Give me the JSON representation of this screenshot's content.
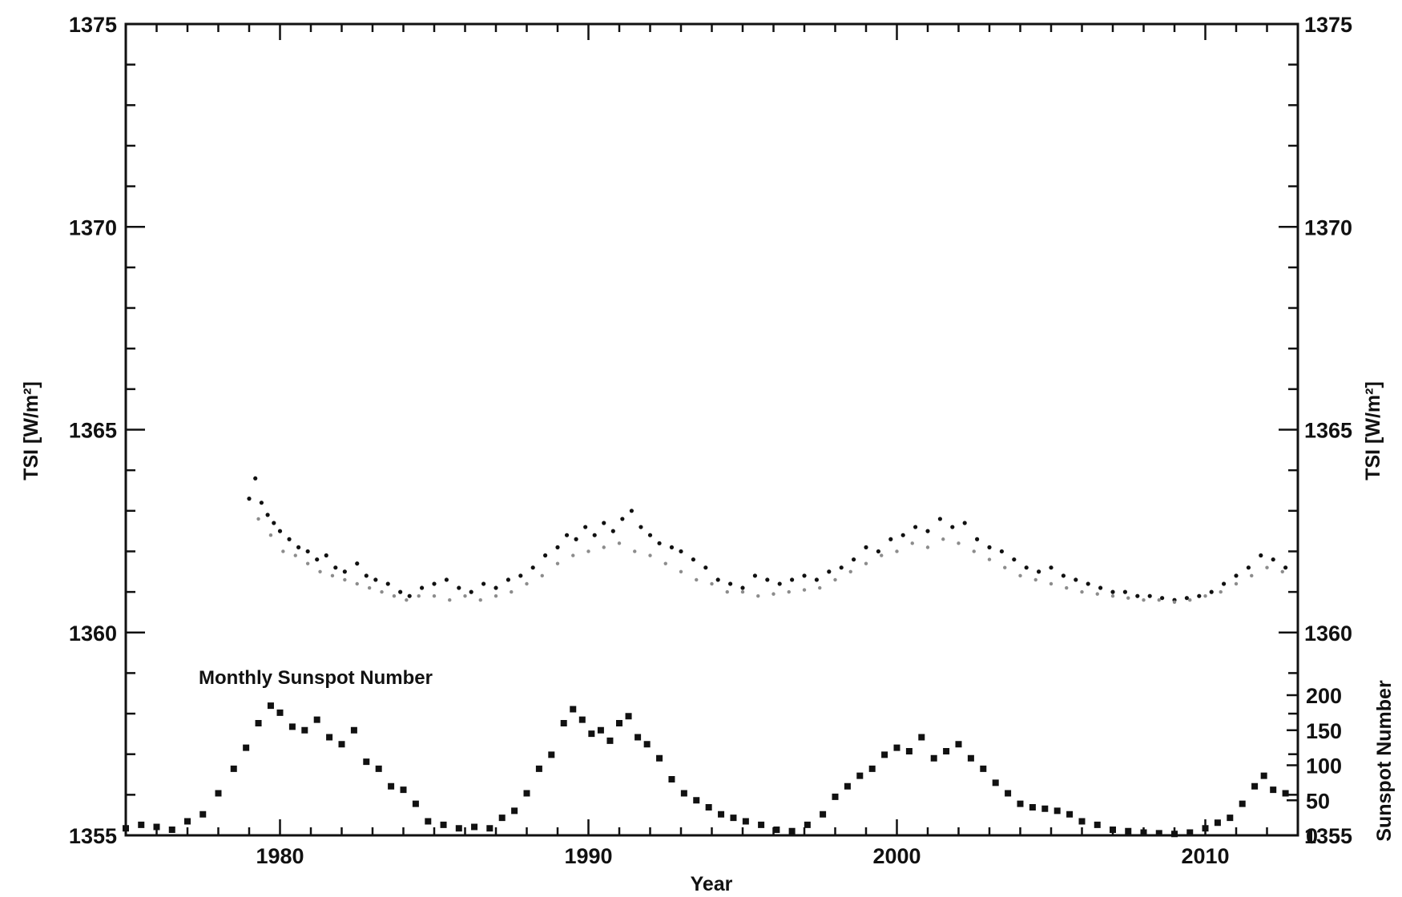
{
  "chart_data": {
    "type": "scatter",
    "title": "",
    "xlabel": "Year",
    "ylabel_left": "TSI [W/m²]",
    "ylabel_right": "TSI [W/m²]",
    "ylabel_sunspot": "Sunspot Number",
    "xlim": [
      1975,
      2013
    ],
    "ylim": [
      1355,
      1375
    ],
    "x_ticks": [
      1980,
      1990,
      2000,
      2010
    ],
    "x_tick_labels": [
      "1980",
      "1990",
      "2000",
      "2010"
    ],
    "y_ticks": [
      1355,
      1360,
      1365,
      1370,
      1375
    ],
    "y_tick_labels": [
      "1355",
      "1360",
      "1365",
      "1370",
      "1375"
    ],
    "sunspot_axis": {
      "label": "Sunspot Number",
      "ticks": [
        0,
        50,
        100,
        150,
        200
      ],
      "tick_labels": [
        "0",
        "50",
        "100",
        "150",
        "200"
      ],
      "range": [
        0,
        200
      ]
    },
    "annotation": "Monthly Sunspot Number",
    "grid": false,
    "series": [
      {
        "kind": "tsi_black",
        "color": "#111111",
        "points": [
          [
            1979.0,
            1363.3
          ],
          [
            1979.2,
            1363.8
          ],
          [
            1979.4,
            1363.2
          ],
          [
            1979.6,
            1362.9
          ],
          [
            1979.8,
            1362.7
          ],
          [
            1980.0,
            1362.5
          ],
          [
            1980.3,
            1362.3
          ],
          [
            1980.6,
            1362.1
          ],
          [
            1980.9,
            1362.0
          ],
          [
            1981.2,
            1361.8
          ],
          [
            1981.5,
            1361.9
          ],
          [
            1981.8,
            1361.6
          ],
          [
            1982.1,
            1361.5
          ],
          [
            1982.5,
            1361.7
          ],
          [
            1982.8,
            1361.4
          ],
          [
            1983.1,
            1361.3
          ],
          [
            1983.5,
            1361.2
          ],
          [
            1983.9,
            1361.0
          ],
          [
            1984.2,
            1360.9
          ],
          [
            1984.6,
            1361.1
          ],
          [
            1985.0,
            1361.2
          ],
          [
            1985.4,
            1361.3
          ],
          [
            1985.8,
            1361.1
          ],
          [
            1986.2,
            1361.0
          ],
          [
            1986.6,
            1361.2
          ],
          [
            1987.0,
            1361.1
          ],
          [
            1987.4,
            1361.3
          ],
          [
            1987.8,
            1361.4
          ],
          [
            1988.2,
            1361.6
          ],
          [
            1988.6,
            1361.9
          ],
          [
            1989.0,
            1362.1
          ],
          [
            1989.3,
            1362.4
          ],
          [
            1989.6,
            1362.3
          ],
          [
            1989.9,
            1362.6
          ],
          [
            1990.2,
            1362.4
          ],
          [
            1990.5,
            1362.7
          ],
          [
            1990.8,
            1362.5
          ],
          [
            1991.1,
            1362.8
          ],
          [
            1991.4,
            1363.0
          ],
          [
            1991.7,
            1362.6
          ],
          [
            1992.0,
            1362.4
          ],
          [
            1992.3,
            1362.2
          ],
          [
            1992.7,
            1362.1
          ],
          [
            1993.0,
            1362.0
          ],
          [
            1993.4,
            1361.8
          ],
          [
            1993.8,
            1361.6
          ],
          [
            1994.2,
            1361.3
          ],
          [
            1994.6,
            1361.2
          ],
          [
            1995.0,
            1361.1
          ],
          [
            1995.4,
            1361.4
          ],
          [
            1995.8,
            1361.3
          ],
          [
            1996.2,
            1361.2
          ],
          [
            1996.6,
            1361.3
          ],
          [
            1997.0,
            1361.4
          ],
          [
            1997.4,
            1361.3
          ],
          [
            1997.8,
            1361.5
          ],
          [
            1998.2,
            1361.6
          ],
          [
            1998.6,
            1361.8
          ],
          [
            1999.0,
            1362.1
          ],
          [
            1999.4,
            1362.0
          ],
          [
            1999.8,
            1362.3
          ],
          [
            2000.2,
            1362.4
          ],
          [
            2000.6,
            1362.6
          ],
          [
            2001.0,
            1362.5
          ],
          [
            2001.4,
            1362.8
          ],
          [
            2001.8,
            1362.6
          ],
          [
            2002.2,
            1362.7
          ],
          [
            2002.6,
            1362.3
          ],
          [
            2003.0,
            1362.1
          ],
          [
            2003.4,
            1362.0
          ],
          [
            2003.8,
            1361.8
          ],
          [
            2004.2,
            1361.6
          ],
          [
            2004.6,
            1361.5
          ],
          [
            2005.0,
            1361.6
          ],
          [
            2005.4,
            1361.4
          ],
          [
            2005.8,
            1361.3
          ],
          [
            2006.2,
            1361.2
          ],
          [
            2006.6,
            1361.1
          ],
          [
            2007.0,
            1361.0
          ],
          [
            2007.4,
            1361.0
          ],
          [
            2007.8,
            1360.9
          ],
          [
            2008.2,
            1360.9
          ],
          [
            2008.6,
            1360.85
          ],
          [
            2009.0,
            1360.8
          ],
          [
            2009.4,
            1360.85
          ],
          [
            2009.8,
            1360.9
          ],
          [
            2010.2,
            1361.0
          ],
          [
            2010.6,
            1361.2
          ],
          [
            2011.0,
            1361.4
          ],
          [
            2011.4,
            1361.6
          ],
          [
            2011.8,
            1361.9
          ],
          [
            2012.2,
            1361.8
          ],
          [
            2012.6,
            1361.6
          ]
        ]
      },
      {
        "kind": "tsi_gray",
        "color": "#8c8c8c",
        "points": [
          [
            1979.3,
            1362.8
          ],
          [
            1979.7,
            1362.4
          ],
          [
            1980.1,
            1362.0
          ],
          [
            1980.5,
            1361.9
          ],
          [
            1980.9,
            1361.7
          ],
          [
            1981.3,
            1361.5
          ],
          [
            1981.7,
            1361.4
          ],
          [
            1982.1,
            1361.3
          ],
          [
            1982.5,
            1361.2
          ],
          [
            1982.9,
            1361.1
          ],
          [
            1983.3,
            1361.0
          ],
          [
            1983.7,
            1360.9
          ],
          [
            1984.1,
            1360.8
          ],
          [
            1984.5,
            1360.9
          ],
          [
            1985.0,
            1360.9
          ],
          [
            1985.5,
            1360.8
          ],
          [
            1986.0,
            1360.9
          ],
          [
            1986.5,
            1360.8
          ],
          [
            1987.0,
            1360.9
          ],
          [
            1987.5,
            1361.0
          ],
          [
            1988.0,
            1361.2
          ],
          [
            1988.5,
            1361.4
          ],
          [
            1989.0,
            1361.7
          ],
          [
            1989.5,
            1361.9
          ],
          [
            1990.0,
            1362.0
          ],
          [
            1990.5,
            1362.1
          ],
          [
            1991.0,
            1362.2
          ],
          [
            1991.5,
            1362.0
          ],
          [
            1992.0,
            1361.9
          ],
          [
            1992.5,
            1361.7
          ],
          [
            1993.0,
            1361.5
          ],
          [
            1993.5,
            1361.3
          ],
          [
            1994.0,
            1361.2
          ],
          [
            1994.5,
            1361.0
          ],
          [
            1995.0,
            1361.0
          ],
          [
            1995.5,
            1360.9
          ],
          [
            1996.0,
            1360.95
          ],
          [
            1996.5,
            1361.0
          ],
          [
            1997.0,
            1361.05
          ],
          [
            1997.5,
            1361.1
          ],
          [
            1998.0,
            1361.3
          ],
          [
            1998.5,
            1361.5
          ],
          [
            1999.0,
            1361.7
          ],
          [
            1999.5,
            1361.9
          ],
          [
            2000.0,
            1362.0
          ],
          [
            2000.5,
            1362.2
          ],
          [
            2001.0,
            1362.1
          ],
          [
            2001.5,
            1362.3
          ],
          [
            2002.0,
            1362.2
          ],
          [
            2002.5,
            1362.0
          ],
          [
            2003.0,
            1361.8
          ],
          [
            2003.5,
            1361.6
          ],
          [
            2004.0,
            1361.4
          ],
          [
            2004.5,
            1361.3
          ],
          [
            2005.0,
            1361.2
          ],
          [
            2005.5,
            1361.1
          ],
          [
            2006.0,
            1361.0
          ],
          [
            2006.5,
            1360.95
          ],
          [
            2007.0,
            1360.9
          ],
          [
            2007.5,
            1360.85
          ],
          [
            2008.0,
            1360.8
          ],
          [
            2008.5,
            1360.8
          ],
          [
            2009.0,
            1360.75
          ],
          [
            2009.5,
            1360.8
          ],
          [
            2010.0,
            1360.9
          ],
          [
            2010.5,
            1361.0
          ],
          [
            2011.0,
            1361.2
          ],
          [
            2011.5,
            1361.4
          ],
          [
            2012.0,
            1361.6
          ],
          [
            2012.5,
            1361.5
          ]
        ]
      },
      {
        "kind": "sunspot_monthly",
        "color": "#111111",
        "points": [
          [
            1975.0,
            10
          ],
          [
            1975.5,
            15
          ],
          [
            1976.0,
            12
          ],
          [
            1976.5,
            8
          ],
          [
            1977.0,
            20
          ],
          [
            1977.5,
            30
          ],
          [
            1978.0,
            60
          ],
          [
            1978.5,
            95
          ],
          [
            1978.9,
            125
          ],
          [
            1979.3,
            160
          ],
          [
            1979.7,
            185
          ],
          [
            1980.0,
            175
          ],
          [
            1980.4,
            155
          ],
          [
            1980.8,
            150
          ],
          [
            1981.2,
            165
          ],
          [
            1981.6,
            140
          ],
          [
            1982.0,
            130
          ],
          [
            1982.4,
            150
          ],
          [
            1982.8,
            105
          ],
          [
            1983.2,
            95
          ],
          [
            1983.6,
            70
          ],
          [
            1984.0,
            65
          ],
          [
            1984.4,
            45
          ],
          [
            1984.8,
            20
          ],
          [
            1985.3,
            15
          ],
          [
            1985.8,
            10
          ],
          [
            1986.3,
            12
          ],
          [
            1986.8,
            10
          ],
          [
            1987.2,
            25
          ],
          [
            1987.6,
            35
          ],
          [
            1988.0,
            60
          ],
          [
            1988.4,
            95
          ],
          [
            1988.8,
            115
          ],
          [
            1989.2,
            160
          ],
          [
            1989.5,
            180
          ],
          [
            1989.8,
            165
          ],
          [
            1990.1,
            145
          ],
          [
            1990.4,
            150
          ],
          [
            1990.7,
            135
          ],
          [
            1991.0,
            160
          ],
          [
            1991.3,
            170
          ],
          [
            1991.6,
            140
          ],
          [
            1991.9,
            130
          ],
          [
            1992.3,
            110
          ],
          [
            1992.7,
            80
          ],
          [
            1993.1,
            60
          ],
          [
            1993.5,
            50
          ],
          [
            1993.9,
            40
          ],
          [
            1994.3,
            30
          ],
          [
            1994.7,
            25
          ],
          [
            1995.1,
            20
          ],
          [
            1995.6,
            15
          ],
          [
            1996.1,
            8
          ],
          [
            1996.6,
            6
          ],
          [
            1997.1,
            15
          ],
          [
            1997.6,
            30
          ],
          [
            1998.0,
            55
          ],
          [
            1998.4,
            70
          ],
          [
            1998.8,
            85
          ],
          [
            1999.2,
            95
          ],
          [
            1999.6,
            115
          ],
          [
            2000.0,
            125
          ],
          [
            2000.4,
            120
          ],
          [
            2000.8,
            140
          ],
          [
            2001.2,
            110
          ],
          [
            2001.6,
            120
          ],
          [
            2002.0,
            130
          ],
          [
            2002.4,
            110
          ],
          [
            2002.8,
            95
          ],
          [
            2003.2,
            75
          ],
          [
            2003.6,
            60
          ],
          [
            2004.0,
            45
          ],
          [
            2004.4,
            40
          ],
          [
            2004.8,
            38
          ],
          [
            2005.2,
            35
          ],
          [
            2005.6,
            30
          ],
          [
            2006.0,
            20
          ],
          [
            2006.5,
            15
          ],
          [
            2007.0,
            8
          ],
          [
            2007.5,
            6
          ],
          [
            2008.0,
            4
          ],
          [
            2008.5,
            3
          ],
          [
            2009.0,
            2
          ],
          [
            2009.5,
            4
          ],
          [
            2010.0,
            10
          ],
          [
            2010.4,
            18
          ],
          [
            2010.8,
            25
          ],
          [
            2011.2,
            45
          ],
          [
            2011.6,
            70
          ],
          [
            2011.9,
            85
          ],
          [
            2012.2,
            65
          ],
          [
            2012.6,
            60
          ]
        ]
      }
    ]
  }
}
